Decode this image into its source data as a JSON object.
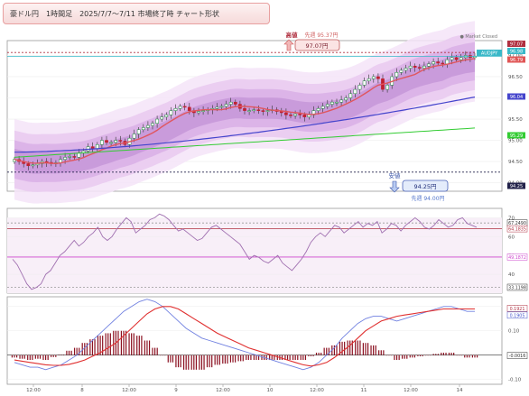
{
  "title": "豪ドル円　1時間足　2025/7/7〜7/11 市場終了時 チャート形状",
  "market_status": "● Market Closed",
  "symbol": "AUDJPY",
  "chart_data": [
    {
      "type": "candlestick",
      "name": "price",
      "ylim": [
        93.8,
        97.35
      ],
      "yticks": [
        "97.00",
        "96.50",
        "96.00",
        "95.50",
        "95.00",
        "94.50",
        "94.00"
      ],
      "xticks": [
        "12:00",
        "8",
        "12:00",
        "9",
        "12:00",
        "10",
        "12:00",
        "11",
        "12:00",
        "14"
      ],
      "overlays": {
        "envelope_colors": [
          "#f5e4f8",
          "#e9c9f0",
          "#d9afe6",
          "#c596d8"
        ],
        "sma_short_color": "#e0565f",
        "sma_mid_color": "#4444cc",
        "sma_long_color": "#33cc33"
      },
      "price_tags": [
        {
          "label": "97.07",
          "color": "#b03040"
        },
        {
          "label": "96.98",
          "color": "#39b8c8"
        },
        {
          "label": "96.79",
          "color": "#e05555"
        },
        {
          "label": "96.04",
          "color": "#4444cc"
        },
        {
          "label": "95.29",
          "color": "#33cc33"
        },
        {
          "label": "94.25",
          "color": "#22224a"
        }
      ],
      "annotations": {
        "high_label": "高値",
        "high_value": "97.07円",
        "high_prev": "先週 95.37円",
        "low_label": "安値",
        "low_value": "94.25円",
        "low_prev": "先週 94.00円"
      },
      "close_series": [
        94.55,
        94.5,
        94.45,
        94.4,
        94.42,
        94.45,
        94.5,
        94.48,
        94.45,
        94.47,
        94.55,
        94.6,
        94.62,
        94.6,
        94.7,
        94.75,
        94.85,
        94.8,
        94.9,
        95.0,
        94.95,
        94.95,
        95.0,
        94.98,
        94.9,
        95.05,
        95.15,
        95.25,
        95.3,
        95.35,
        95.4,
        95.5,
        95.55,
        95.6,
        95.7,
        95.75,
        95.8,
        95.78,
        95.7,
        95.65,
        95.68,
        95.7,
        95.72,
        95.75,
        95.78,
        95.8,
        95.85,
        95.9,
        95.85,
        95.75,
        95.7,
        95.7,
        95.72,
        95.7,
        95.68,
        95.7,
        95.72,
        95.68,
        95.65,
        95.6,
        95.58,
        95.62,
        95.6,
        95.55,
        95.6,
        95.7,
        95.75,
        95.8,
        95.85,
        95.9,
        95.9,
        95.95,
        96.0,
        96.1,
        96.2,
        96.3,
        96.4,
        96.45,
        96.5,
        96.45,
        96.2,
        96.3,
        96.5,
        96.6,
        96.65,
        96.7,
        96.75,
        96.72,
        96.7,
        96.75,
        96.8,
        96.85,
        96.82,
        96.8,
        96.9,
        96.95,
        96.9,
        96.95,
        97.0,
        96.95,
        96.98
      ]
    },
    {
      "type": "line",
      "name": "rsi",
      "ylim": [
        30,
        75
      ],
      "yticks": [
        "70",
        "60",
        "50",
        "40"
      ],
      "levels": [
        "67.2490",
        "64.1835",
        "49.1872",
        "33.1198"
      ],
      "values": [
        48,
        45,
        40,
        35,
        32,
        33,
        35,
        40,
        42,
        46,
        50,
        52,
        55,
        58,
        55,
        57,
        60,
        62,
        65,
        60,
        58,
        60,
        64,
        67,
        70,
        68,
        62,
        64,
        66,
        69,
        70,
        72,
        71,
        69,
        66,
        63,
        64,
        62,
        60,
        58,
        59,
        62,
        65,
        66,
        64,
        62,
        60,
        58,
        56,
        52,
        48,
        50,
        49,
        47,
        46,
        48,
        50,
        46,
        44,
        42,
        45,
        48,
        52,
        57,
        60,
        62,
        60,
        63,
        66,
        65,
        62,
        64,
        66,
        68,
        65,
        67,
        66,
        68,
        62,
        64,
        67,
        66,
        63,
        66,
        68,
        70,
        68,
        65,
        64,
        66,
        69,
        67,
        65,
        66,
        69,
        70,
        67,
        66,
        65
      ]
    },
    {
      "type": "bar+line",
      "name": "macd",
      "ylim": [
        -0.12,
        0.24
      ],
      "yticks": [
        "0.20",
        "0.10",
        "0.00",
        "-0.10"
      ],
      "levels": [
        "0.1921",
        "0.1905",
        "-0.0016"
      ],
      "macd": [
        -0.03,
        -0.04,
        -0.05,
        -0.05,
        -0.06,
        -0.05,
        -0.04,
        -0.02,
        0.0,
        0.03,
        0.06,
        0.09,
        0.12,
        0.15,
        0.18,
        0.2,
        0.22,
        0.23,
        0.22,
        0.2,
        0.17,
        0.14,
        0.11,
        0.09,
        0.07,
        0.06,
        0.05,
        0.04,
        0.03,
        0.02,
        0.01,
        0.0,
        -0.01,
        -0.02,
        -0.03,
        -0.04,
        -0.05,
        -0.06,
        -0.05,
        -0.03,
        0.0,
        0.03,
        0.07,
        0.1,
        0.13,
        0.15,
        0.16,
        0.16,
        0.15,
        0.14,
        0.15,
        0.16,
        0.17,
        0.18,
        0.19,
        0.2,
        0.2,
        0.19,
        0.18,
        0.18
      ],
      "signal": [
        -0.02,
        -0.025,
        -0.03,
        -0.035,
        -0.04,
        -0.042,
        -0.042,
        -0.038,
        -0.03,
        -0.02,
        -0.005,
        0.01,
        0.03,
        0.05,
        0.08,
        0.11,
        0.14,
        0.17,
        0.19,
        0.2,
        0.2,
        0.19,
        0.17,
        0.15,
        0.13,
        0.11,
        0.09,
        0.075,
        0.06,
        0.045,
        0.03,
        0.02,
        0.01,
        0.0,
        -0.01,
        -0.02,
        -0.03,
        -0.04,
        -0.045,
        -0.04,
        -0.03,
        -0.01,
        0.015,
        0.04,
        0.07,
        0.1,
        0.12,
        0.14,
        0.15,
        0.16,
        0.165,
        0.17,
        0.175,
        0.18,
        0.185,
        0.19,
        0.19,
        0.19,
        0.19,
        0.19
      ],
      "histogram": [
        -0.01,
        -0.015,
        -0.02,
        -0.015,
        -0.02,
        -0.008,
        0.002,
        0.018,
        0.03,
        0.05,
        0.065,
        0.08,
        0.09,
        0.1,
        0.1,
        0.09,
        0.08,
        0.06,
        0.03,
        0.0,
        -0.03,
        -0.05,
        -0.06,
        -0.06,
        -0.06,
        -0.05,
        -0.04,
        -0.035,
        -0.03,
        -0.025,
        -0.02,
        -0.02,
        -0.02,
        -0.02,
        -0.02,
        -0.02,
        -0.02,
        -0.02,
        -0.005,
        0.01,
        0.03,
        0.04,
        0.055,
        0.06,
        0.06,
        0.05,
        0.04,
        0.02,
        0.0,
        -0.02,
        -0.015,
        -0.01,
        -0.005,
        0.0,
        0.005,
        0.01,
        0.01,
        0.0,
        -0.01,
        -0.01
      ]
    }
  ]
}
